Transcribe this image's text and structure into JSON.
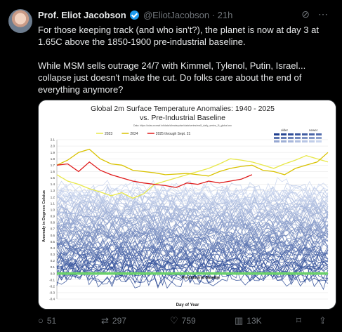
{
  "tweet": {
    "name": "Prof. Eliot Jacobson",
    "handle": "@EliotJacobson",
    "separator": "·",
    "time": "21h",
    "body_p1": "For those keeping track (and who isn't?), the planet is now at day 3 at 1.65C above the 1850-1900 pre-industrial baseline.",
    "body_p2": "While MSM sells outrage 24/7 with Kimmel, Tylenol, Putin, Israel... collapse just doesn't make the cut. Do folks care about the end of everything anymore?"
  },
  "header_icons": [
    "grok-icon",
    "more-icon"
  ],
  "actions": {
    "replies": "51",
    "reposts": "297",
    "likes": "759",
    "views": "13K"
  },
  "colors": {
    "background": "#000000",
    "text": "#e7e9ea",
    "muted": "#71767b",
    "accent": "#1d9bf0"
  },
  "chart_data": {
    "type": "line",
    "title": "Global 2m Surface Temperature Anomalies: 1940 - 2025",
    "subtitle": "vs. Pre-Industrial Baseline",
    "data_source": "Data: https://cdas.ecmwf.int/data/climatepulse/data/series/era5_daily_series_2t_global.csv",
    "xlabel": "Day of Year",
    "ylabel": "Anomaly in Degrees Celsius",
    "ylim": [
      -0.4,
      2.1
    ],
    "yticks": [
      "2.1",
      "2.0",
      "1.9",
      "1.8",
      "1.7",
      "1.6",
      "1.5",
      "1.4",
      "1.3",
      "1.2",
      "1.1",
      "1.0",
      "0.9",
      "0.8",
      "0.7",
      "0.6",
      "0.5",
      "0.4",
      "0.3",
      "0.2",
      "0.1",
      "0.0",
      "-0.1",
      "-0.2",
      "-0.3",
      "-0.4"
    ],
    "baseline_label": "Pre-Industrial Baseline",
    "older_label": "older",
    "newer_label": "newer",
    "legend_position": "top",
    "colors": {
      "y2023": "#e8e84a",
      "y2024": "#d9c200",
      "y2025": "#e01b1b",
      "baseline": "#6bd16b",
      "older": "#1f3f8f",
      "newer": "#c9d5ee"
    },
    "series": [
      {
        "name": "2023",
        "values": [
          1.55,
          1.45,
          1.4,
          1.33,
          1.28,
          1.22,
          1.27,
          1.18,
          1.25,
          1.4,
          1.45,
          1.5,
          1.55,
          1.6,
          1.65,
          1.72,
          1.8,
          1.78,
          1.75,
          1.7,
          1.65,
          1.72,
          1.78,
          1.85,
          1.8,
          1.75
        ]
      },
      {
        "name": "2024",
        "values": [
          1.7,
          1.78,
          1.9,
          1.95,
          1.8,
          1.72,
          1.7,
          1.62,
          1.6,
          1.58,
          1.55,
          1.56,
          1.57,
          1.55,
          1.53,
          1.6,
          1.65,
          1.68,
          1.7,
          1.62,
          1.6,
          1.55,
          1.65,
          1.7,
          1.75,
          1.9
        ]
      },
      {
        "name": "2025 through Sept. 21",
        "values": [
          1.7,
          1.72,
          1.6,
          1.75,
          1.62,
          1.55,
          1.5,
          1.45,
          1.42,
          1.4,
          1.38,
          1.35,
          1.42,
          1.4,
          1.45,
          1.42,
          1.45,
          1.48,
          1.55
        ]
      }
    ]
  }
}
